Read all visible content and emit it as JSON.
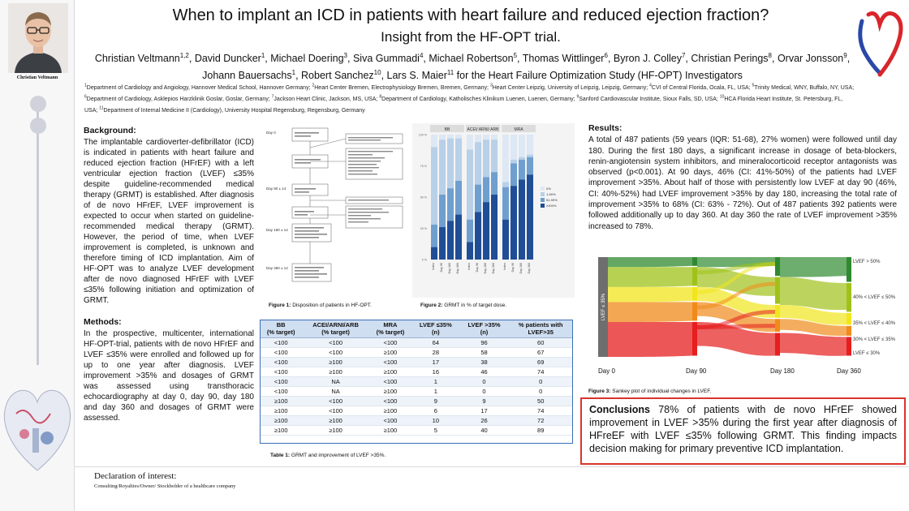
{
  "portrait": {
    "name": "Christian Veltmann"
  },
  "header": {
    "title": "When to implant an ICD in patients with heart failure and reduced ejection fraction?",
    "subtitle": "Insight from the HF-OPT trial."
  },
  "authors": [
    {
      "name": "Christian Veltmann",
      "sup": "1,2"
    },
    {
      "name": "David Duncker",
      "sup": "1"
    },
    {
      "name": "Michael Doering",
      "sup": "3"
    },
    {
      "name": "Siva Gummadi",
      "sup": "4"
    },
    {
      "name": "Michael Robertson",
      "sup": "5"
    },
    {
      "name": "Thomas Wittlinger",
      "sup": "6"
    },
    {
      "name": "Byron J. Colley",
      "sup": "7"
    },
    {
      "name": "Christian Perings",
      "sup": "8"
    },
    {
      "name": "Orvar Jonsson",
      "sup": "9"
    },
    {
      "name": "Johann Bauersachs",
      "sup": "1"
    },
    {
      "name": "Robert Sanchez",
      "sup": "10"
    },
    {
      "name": "Lars S. Maier",
      "sup": "11"
    }
  ],
  "authors_suffix": " for the Heart Failure Optimization Study (HF-OPT) Investigators",
  "affiliations": [
    {
      "sup": "1",
      "text": "Department of Cardiology and Angiology, Hannover Medical School, Hannover Germany; "
    },
    {
      "sup": "2",
      "text": "Heart Center Bremen, Electrophysiology Bremen, Bremen, Germany; "
    },
    {
      "sup": "3",
      "text": "Heart Center Leipzig, University of Leipzig, Leipzig, Germany; "
    },
    {
      "sup": "4",
      "text": "CVI of Central Florida, Ocala, FL, USA; "
    },
    {
      "sup": "5",
      "text": "Trinity Medical, WNY, Buffalo, NY, USA; "
    },
    {
      "sup": "6",
      "text": "Department of Cardiology, Asklepios Harzklinik Goslar, Goslar, Germany; "
    },
    {
      "sup": "7",
      "text": "Jackson Heart Clinic, Jackson, MS, USA; "
    },
    {
      "sup": "8",
      "text": "Department of Cardiology, Katholisches Klinikum Luenen, Luenen, Germany; "
    },
    {
      "sup": "9",
      "text": "Sanford Cardiovascular Institute, Sioux Falls, SD, USA; "
    },
    {
      "sup": "10",
      "text": "HCA Florida Heart Institute, St. Petersburg, FL, USA; "
    },
    {
      "sup": "11",
      "text": "Department of Internal Medicine II (Cardiology), University Hospital Regensburg, Regensburg, Germany"
    }
  ],
  "background": {
    "heading": "Background:",
    "text": "The implantable cardioverter-defibrillator (ICD) is indicated in patients with heart failure and reduced ejection fraction (HFrEF) with a left ventricular ejection fraction (LVEF) ≤35% despite guideline-recommended medical therapy (GRMT) is established. After diagnosis of de novo HFrEF, LVEF improvement is expected to occur when started on guideline-recommended medical therapy (GRMT). However, the period of time, when LVEF improvement is completed, is unknown and therefore timing of ICD implantation. Aim of HF-OPT was to analyze LVEF development after de novo diagnosed HFrEF with LVEF ≤35% following initiation and optimization of GRMT."
  },
  "methods": {
    "heading": "Methods:",
    "text": "In the prospective, multicenter, international HF-OPT-trial, patients with de novo HFrEF and LVEF ≤35% were enrolled and followed up for up to one year after diagnosis. LVEF improvement >35% and dosages of GRMT was assessed using transthoracic echocardiography at day 0, day 90, day 180 and day 360 and dosages of GRMT were assessed."
  },
  "figure1": {
    "caption_label": "Figure 1:",
    "caption_text": " Disposition of patients in HF-OPT.",
    "days": [
      "Day 0",
      "Day 90 ± 14",
      "Day 180 ± 14",
      "Day 360 ± 14"
    ]
  },
  "figure2": {
    "caption_label": "Figure 2:",
    "caption_text": " GRMT in % of target dose.",
    "chart_data": {
      "type": "bar",
      "stacked": true,
      "panels": [
        "BB",
        "ACEI/ ARNI/ ARB",
        "MRA"
      ],
      "categories": [
        "Index",
        "Day 90",
        "Day 180",
        "Day 360"
      ],
      "legend": [
        "0%",
        "1-50%",
        "51-99%",
        "≥100%"
      ],
      "ylim": [
        0,
        100
      ],
      "colors": [
        "#dde8f4",
        "#b8d0e8",
        "#6f9fcf",
        "#1f4e96"
      ],
      "series": [
        {
          "panel": "BB",
          "values": [
            [
              10,
              62,
              18,
              10
            ],
            [
              4,
              44,
              26,
              26
            ],
            [
              3,
              40,
              26,
              31
            ],
            [
              3,
              34,
              27,
              36
            ]
          ]
        },
        {
          "panel": "ACEI/ ARNI/ ARB",
          "values": [
            [
              12,
              56,
              18,
              14
            ],
            [
              6,
              34,
              22,
              38
            ],
            [
              4,
              30,
              20,
              46
            ],
            [
              4,
              26,
              18,
              52
            ]
          ]
        },
        {
          "panel": "MRA",
          "values": [
            [
              38,
              4,
              26,
              32
            ],
            [
              20,
              3,
              18,
              59
            ],
            [
              18,
              2,
              16,
              64
            ],
            [
              16,
              2,
              14,
              68
            ]
          ]
        }
      ]
    }
  },
  "table": {
    "caption_label": "Table 1:",
    "caption_text": " GRMT and improvement of LVEF >35%.",
    "headers": [
      [
        "BB",
        "(% target)"
      ],
      [
        "ACEI/ARNI/ARB",
        "(% target)"
      ],
      [
        "MRA",
        "(% target)"
      ],
      [
        "LVEF ≤35%",
        "(n)"
      ],
      [
        "LVEF >35%",
        "(n)"
      ],
      [
        "% patients with",
        "LVEF>35"
      ]
    ],
    "rows": [
      [
        "<100",
        "<100",
        "<100",
        "64",
        "96",
        "60"
      ],
      [
        "<100",
        "<100",
        "≥100",
        "28",
        "58",
        "67"
      ],
      [
        "<100",
        "≥100",
        "<100",
        "17",
        "38",
        "69"
      ],
      [
        "<100",
        "≥100",
        "≥100",
        "16",
        "46",
        "74"
      ],
      [
        "<100",
        "NA",
        "<100",
        "1",
        "0",
        "0"
      ],
      [
        "<100",
        "NA",
        "≥100",
        "1",
        "0",
        "0"
      ],
      [
        "≥100",
        "<100",
        "<100",
        "9",
        "9",
        "50"
      ],
      [
        "≥100",
        "<100",
        "≥100",
        "6",
        "17",
        "74"
      ],
      [
        "≥100",
        "≥100",
        "<100",
        "10",
        "26",
        "72"
      ],
      [
        "≥100",
        "≥100",
        "≥100",
        "5",
        "40",
        "89"
      ]
    ]
  },
  "results": {
    "heading": "Results:",
    "text": "A total of 487 patients (59 years (IQR: 51-68), 27% women) were followed until day 180. During the first 180 days, a significant increase in dosage of beta-blockers, renin-angiotensin system inhibitors, and mineralocorticoid receptor antagonists was observed (p<0.001). At 90 days, 46% (CI: 41%-50%) of the patients had LVEF improvement >35%. About half of those with persistently low LVEF at day 90 (46%, CI: 40%-52%) had LVEF improvement >35% by day 180, increasing the total rate of improvement >35% to 68% (CI: 63% - 72%). Out of 487 patients 392 patients were followed additionally up to day 360. At day 360 the rate of LVEF improvement >35% increased to 78%."
  },
  "figure3": {
    "caption_label": "Figure 3:",
    "caption_text": " Sankey plot of individual changes in LVEF.",
    "chart_data": {
      "type": "sankey",
      "stages": [
        "Day 0",
        "Day 90",
        "Day 180",
        "Day 360"
      ],
      "start_label": "LVEF ≤ 35%",
      "categories": [
        "LVEF > 50%",
        "40% < LVEF ≤ 50%",
        "35% < LVEF ≤ 40%",
        "30% < LVEF ≤ 35%",
        "LVEF ≤ 30%"
      ],
      "colors": [
        "#2f8a2f",
        "#9fc21a",
        "#f1e51c",
        "#f08a1a",
        "#e61e1e"
      ]
    }
  },
  "conclusion": {
    "label": "Conclusions",
    "text": " 78% of patients with de novo HFrEF showed improvement in LVEF >35% during the first year after diagnosis of HFreEF with LVEF ≤35% following GRMT. This finding impacts decision making for primary preventive ICD implantation."
  },
  "declaration": {
    "heading": "Declaration of interest:",
    "text": "Consulting/Royalties/Owner/ Stockholder of a healthcare company"
  }
}
